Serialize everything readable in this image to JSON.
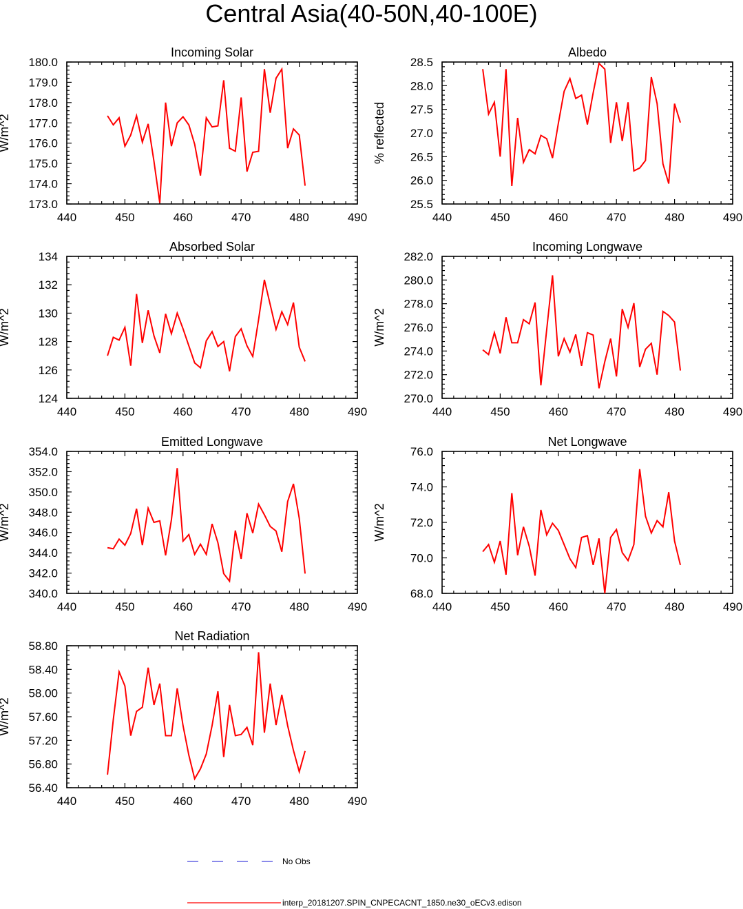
{
  "figure_title": "Central Asia(40-50N,40-100E)",
  "legend": {
    "entries": [
      {
        "label": "No Obs",
        "color": "#4444dd",
        "style": "dashed"
      },
      {
        "label": "interp_20181207.SPIN_CNPECACNT_1850.ne30_oECv3.edison",
        "color": "#ff0000",
        "style": "solid"
      }
    ]
  },
  "chart_data": [
    {
      "id": "incoming-solar",
      "type": "line",
      "title": "Incoming Solar",
      "ylabel": "W/m^2",
      "xlabel": "",
      "xlim": [
        440,
        490
      ],
      "xticks": [
        440,
        450,
        460,
        470,
        480,
        490
      ],
      "ylim": [
        173.0,
        180.0
      ],
      "yticks": [
        173.0,
        174.0,
        175.0,
        176.0,
        177.0,
        178.0,
        179.0,
        180.0
      ],
      "ydecimals": 1,
      "color": "#ff0000",
      "x": [
        447,
        448,
        449,
        450,
        451,
        452,
        453,
        454,
        455,
        456,
        457,
        458,
        459,
        460,
        461,
        462,
        463,
        464,
        465,
        466,
        467,
        468,
        469,
        470,
        471,
        472,
        473,
        474,
        475,
        476,
        477,
        478,
        479,
        480,
        481
      ],
      "y": [
        177.35,
        176.9,
        177.25,
        175.85,
        176.4,
        177.35,
        176.05,
        176.95,
        175.1,
        173.05,
        178.0,
        175.85,
        177.0,
        177.3,
        176.9,
        175.95,
        174.4,
        177.25,
        176.8,
        176.85,
        179.1,
        175.75,
        175.6,
        178.25,
        174.6,
        175.55,
        175.6,
        179.65,
        177.5,
        179.2,
        179.65,
        175.75,
        176.7,
        176.4,
        173.9
      ]
    },
    {
      "id": "albedo",
      "type": "line",
      "title": "Albedo",
      "ylabel": "% reflected",
      "xlabel": "",
      "xlim": [
        440,
        490
      ],
      "xticks": [
        440,
        450,
        460,
        470,
        480,
        490
      ],
      "ylim": [
        25.5,
        28.5
      ],
      "yticks": [
        25.5,
        26.0,
        26.5,
        27.0,
        27.5,
        28.0,
        28.5
      ],
      "ydecimals": 1,
      "color": "#ff0000",
      "x": [
        447,
        448,
        449,
        450,
        451,
        452,
        453,
        454,
        455,
        456,
        457,
        458,
        459,
        460,
        461,
        462,
        463,
        464,
        465,
        466,
        467,
        468,
        469,
        470,
        471,
        472,
        473,
        474,
        475,
        476,
        477,
        478,
        479,
        480,
        481
      ],
      "y": [
        28.35,
        27.4,
        27.65,
        26.5,
        28.35,
        25.88,
        27.32,
        26.38,
        26.65,
        26.56,
        26.95,
        26.88,
        26.47,
        27.2,
        27.88,
        28.15,
        27.73,
        27.8,
        27.18,
        27.85,
        28.47,
        28.35,
        26.79,
        27.65,
        26.83,
        27.65,
        26.2,
        26.26,
        26.42,
        28.18,
        27.62,
        26.35,
        25.93,
        27.62,
        27.22
      ]
    },
    {
      "id": "absorbed-solar",
      "type": "line",
      "title": "Absorbed Solar",
      "ylabel": "W/m^2",
      "xlabel": "",
      "xlim": [
        440,
        490
      ],
      "xticks": [
        440,
        450,
        460,
        470,
        480,
        490
      ],
      "ylim": [
        124,
        134
      ],
      "yticks": [
        124,
        126,
        128,
        130,
        132,
        134
      ],
      "ydecimals": 0,
      "color": "#ff0000",
      "x": [
        447,
        448,
        449,
        450,
        451,
        452,
        453,
        454,
        455,
        456,
        457,
        458,
        459,
        460,
        461,
        462,
        463,
        464,
        465,
        466,
        467,
        468,
        469,
        470,
        471,
        472,
        473,
        474,
        475,
        476,
        477,
        478,
        479,
        480,
        481
      ],
      "y": [
        127.0,
        128.3,
        128.1,
        129.0,
        126.3,
        131.35,
        127.9,
        130.2,
        128.4,
        127.2,
        129.95,
        128.55,
        130.0,
        128.9,
        127.7,
        126.5,
        126.15,
        128.05,
        128.7,
        127.65,
        128.0,
        125.9,
        128.35,
        128.9,
        127.7,
        126.95,
        129.55,
        132.35,
        130.6,
        128.85,
        130.1,
        129.2,
        130.75,
        127.6,
        126.6
      ]
    },
    {
      "id": "incoming-longwave",
      "type": "line",
      "title": "Incoming Longwave",
      "ylabel": "W/m^2",
      "xlabel": "",
      "xlim": [
        440,
        490
      ],
      "xticks": [
        440,
        450,
        460,
        470,
        480,
        490
      ],
      "ylim": [
        270.0,
        282.0
      ],
      "yticks": [
        270.0,
        272.0,
        274.0,
        276.0,
        278.0,
        280.0,
        282.0
      ],
      "ydecimals": 1,
      "color": "#ff0000",
      "x": [
        447,
        448,
        449,
        450,
        451,
        452,
        453,
        454,
        455,
        456,
        457,
        458,
        459,
        460,
        461,
        462,
        463,
        464,
        465,
        466,
        467,
        468,
        469,
        470,
        471,
        472,
        473,
        474,
        475,
        476,
        477,
        478,
        479,
        480,
        481
      ],
      "y": [
        274.1,
        273.7,
        275.55,
        273.8,
        276.85,
        274.7,
        274.7,
        276.65,
        276.3,
        278.1,
        271.1,
        275.8,
        280.4,
        273.55,
        275.05,
        273.9,
        275.4,
        272.75,
        275.55,
        275.35,
        270.85,
        273.1,
        275.05,
        271.85,
        277.55,
        276.0,
        278.05,
        272.65,
        274.15,
        274.65,
        272.0,
        277.35,
        277.0,
        276.45,
        272.35
      ]
    },
    {
      "id": "emitted-longwave",
      "type": "line",
      "title": "Emitted Longwave",
      "ylabel": "W/m^2",
      "xlabel": "",
      "xlim": [
        440,
        490
      ],
      "xticks": [
        440,
        450,
        460,
        470,
        480,
        490
      ],
      "ylim": [
        340.0,
        354.0
      ],
      "yticks": [
        340.0,
        342.0,
        344.0,
        346.0,
        348.0,
        350.0,
        352.0,
        354.0
      ],
      "ydecimals": 1,
      "color": "#ff0000",
      "x": [
        447,
        448,
        449,
        450,
        451,
        452,
        453,
        454,
        455,
        456,
        457,
        458,
        459,
        460,
        461,
        462,
        463,
        464,
        465,
        466,
        467,
        468,
        469,
        470,
        471,
        472,
        473,
        474,
        475,
        476,
        477,
        478,
        479,
        480,
        481
      ],
      "y": [
        344.5,
        344.4,
        345.35,
        344.75,
        345.9,
        348.35,
        344.75,
        348.4,
        347.0,
        347.15,
        343.75,
        347.25,
        352.35,
        345.15,
        345.8,
        343.85,
        344.85,
        343.85,
        346.85,
        345.0,
        341.95,
        341.2,
        346.2,
        343.4,
        347.9,
        345.95,
        348.8,
        347.75,
        346.6,
        346.15,
        344.1,
        349.05,
        350.8,
        347.4,
        341.95
      ]
    },
    {
      "id": "net-longwave",
      "type": "line",
      "title": "Net Longwave",
      "ylabel": "W/m^2",
      "xlabel": "",
      "xlim": [
        440,
        490
      ],
      "xticks": [
        440,
        450,
        460,
        470,
        480,
        490
      ],
      "ylim": [
        68.0,
        76.0
      ],
      "yticks": [
        68.0,
        70.0,
        72.0,
        74.0,
        76.0
      ],
      "ydecimals": 1,
      "color": "#ff0000",
      "x": [
        447,
        448,
        449,
        450,
        451,
        452,
        453,
        454,
        455,
        456,
        457,
        458,
        459,
        460,
        461,
        462,
        463,
        464,
        465,
        466,
        467,
        468,
        469,
        470,
        471,
        472,
        473,
        474,
        475,
        476,
        477,
        478,
        479,
        480,
        481
      ],
      "y": [
        70.35,
        70.75,
        69.75,
        70.95,
        69.05,
        73.65,
        70.15,
        71.75,
        70.65,
        69.0,
        72.7,
        71.3,
        71.95,
        71.55,
        70.75,
        69.95,
        69.45,
        71.15,
        71.25,
        69.6,
        71.1,
        68.0,
        71.15,
        71.6,
        70.3,
        69.85,
        70.75,
        75.0,
        72.35,
        71.4,
        72.1,
        71.75,
        73.7,
        70.95,
        69.6
      ]
    },
    {
      "id": "net-radiation",
      "type": "line",
      "title": "Net Radiation",
      "ylabel": "W/m^2",
      "xlabel": "",
      "xlim": [
        440,
        490
      ],
      "xticks": [
        440,
        450,
        460,
        470,
        480,
        490
      ],
      "ylim": [
        56.4,
        58.8
      ],
      "yticks": [
        56.4,
        56.8,
        57.2,
        57.6,
        58.0,
        58.4,
        58.8
      ],
      "ydecimals": 2,
      "color": "#ff0000",
      "x": [
        447,
        448,
        449,
        450,
        451,
        452,
        453,
        454,
        455,
        456,
        457,
        458,
        459,
        460,
        461,
        462,
        463,
        464,
        465,
        466,
        467,
        468,
        469,
        470,
        471,
        472,
        473,
        474,
        475,
        476,
        477,
        478,
        479,
        480,
        481
      ],
      "y": [
        56.62,
        57.55,
        58.36,
        58.12,
        57.28,
        57.69,
        57.76,
        58.43,
        57.8,
        58.16,
        57.28,
        57.28,
        58.08,
        57.45,
        56.95,
        56.55,
        56.72,
        56.97,
        57.45,
        58.03,
        56.92,
        57.8,
        57.28,
        57.3,
        57.42,
        57.12,
        58.69,
        57.33,
        58.16,
        57.46,
        57.97,
        57.45,
        57.03,
        56.67,
        57.02
      ]
    }
  ]
}
